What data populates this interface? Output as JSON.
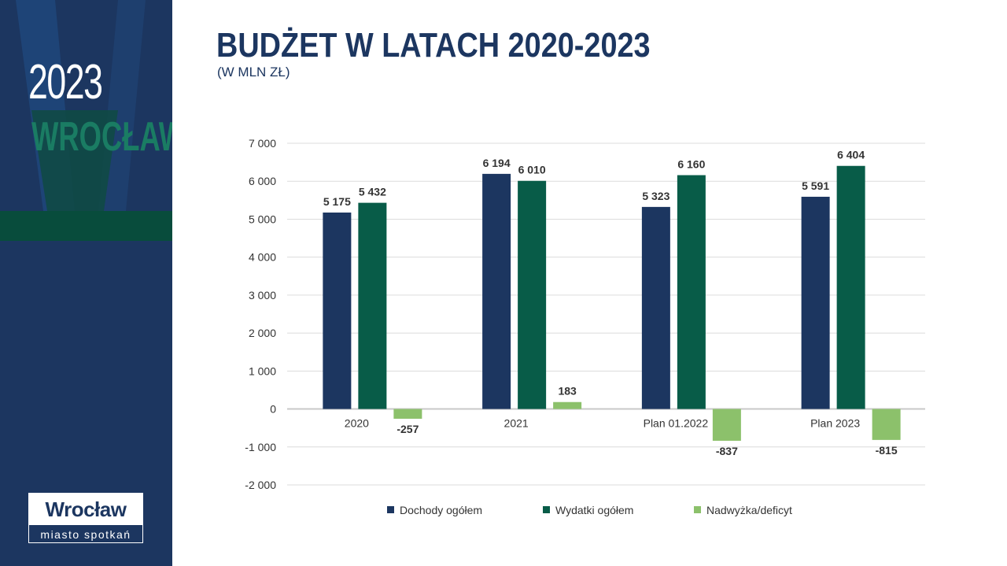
{
  "sidebar": {
    "year": "2023",
    "city": "WROCŁAW",
    "logo_name": "Wrocław",
    "logo_tagline": "miasto spotkań"
  },
  "colors": {
    "navy": "#1c3660",
    "green": "#085c48",
    "light_green": "#8cc16b",
    "sidebar_accent": "#1a7c63"
  },
  "title": "BUDŻET W LATACH 2020-2023",
  "subtitle": "(W MLN ZŁ)",
  "chart_data": {
    "type": "bar",
    "categories": [
      "2020",
      "2021",
      "Plan 01.2022",
      "Plan 2023"
    ],
    "series": [
      {
        "name": "Dochody ogółem",
        "color": "#1c3660",
        "values": [
          5175,
          6194,
          5323,
          5591
        ],
        "labels": [
          "5 175",
          "6 194",
          "5 323",
          "5 591"
        ]
      },
      {
        "name": "Wydatki ogółem",
        "color": "#085c48",
        "values": [
          5432,
          6010,
          6160,
          6404
        ],
        "labels": [
          "5 432",
          "6 010",
          "6 160",
          "6 404"
        ]
      },
      {
        "name": "Nadwyżka/deficyt",
        "color": "#8cc16b",
        "values": [
          -257,
          183,
          -837,
          -815
        ],
        "labels": [
          "-257",
          "183",
          "-837",
          "-815"
        ]
      }
    ],
    "ylim": [
      -2000,
      7000
    ],
    "yticks": [
      7000,
      6000,
      5000,
      4000,
      3000,
      2000,
      1000,
      0,
      -1000,
      -2000
    ],
    "ytick_labels": [
      "7 000",
      "6 000",
      "5 000",
      "4 000",
      "3 000",
      "2 000",
      "1 000",
      "0",
      "-1 000",
      "-2 000"
    ],
    "grid": true,
    "legend_position": "bottom"
  }
}
